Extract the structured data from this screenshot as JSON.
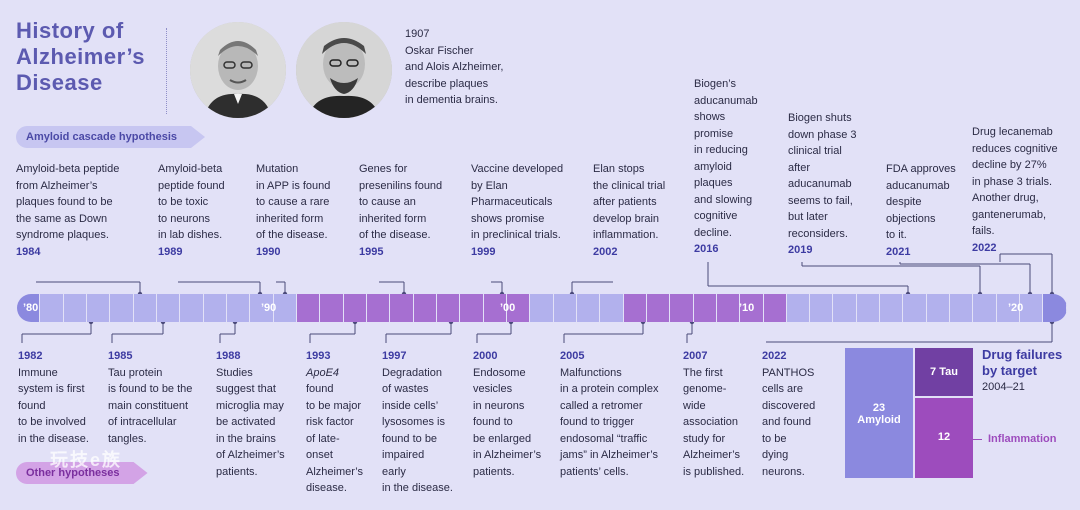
{
  "title": "History of Alzheimer’s Disease",
  "intro": {
    "year": "1907",
    "text": [
      "Oskar Fischer",
      "and Alois Alzheimer,",
      "describe plaques",
      " in dementia brains."
    ]
  },
  "labels": {
    "amyloid_hypothesis": "Amyloid cascade hypothesis",
    "other_hypotheses": "Other hypotheses"
  },
  "top_events": [
    {
      "year": "1984",
      "lines": [
        "Amyloid-beta peptide",
        "from Alzheimer’s",
        "plaques found to be",
        "the same as Down",
        "syndrome plaques."
      ]
    },
    {
      "year": "1989",
      "lines": [
        "Amyloid-beta",
        "peptide found",
        "to be toxic",
        "to neurons",
        "in lab dishes."
      ]
    },
    {
      "year": "1990",
      "lines": [
        "Mutation",
        "in APP is found",
        "to cause a rare",
        "inherited form",
        "of the disease."
      ]
    },
    {
      "year": "1995",
      "lines": [
        "Genes for",
        "presenilins found",
        "to cause an",
        "inherited form",
        "of the disease."
      ]
    },
    {
      "year": "1999",
      "lines": [
        "Vaccine developed",
        "by Elan",
        "Pharmaceuticals",
        "shows promise",
        "in preclinical trials."
      ]
    },
    {
      "year": "2002",
      "lines": [
        "Elan stops",
        "the clinical trial",
        "after patients",
        "develop brain",
        "inflammation."
      ]
    },
    {
      "year": "2016",
      "lines": [
        "Biogen’s",
        "aducanumab",
        "shows",
        "promise",
        "in reducing",
        "amyloid",
        "plaques",
        "and slowing",
        "cognitive",
        "decline."
      ]
    },
    {
      "year": "2019",
      "lines": [
        "Biogen shuts",
        "down phase 3",
        "clinical trial",
        "after",
        "aducanumab",
        "seems to fail,",
        "but later",
        "reconsiders."
      ]
    },
    {
      "year": "2021",
      "lines": [
        "FDA approves",
        "aducanumab",
        "despite",
        "objections",
        "to it."
      ]
    },
    {
      "year": "2022",
      "lines": [
        "Drug lecanemab",
        "reduces cognitive",
        "decline by 27%",
        "in phase 3 trials.",
        "Another drug,",
        "gantenerumab,",
        "fails."
      ]
    }
  ],
  "bottom_events": [
    {
      "year": "1982",
      "lines": [
        "Immune",
        "system is first",
        "found",
        "to be involved",
        "in the disease."
      ]
    },
    {
      "year": "1985",
      "lines": [
        "Tau protein",
        "is found to be the",
        "main constituent",
        "of intracellular",
        "tangles."
      ]
    },
    {
      "year": "1988",
      "lines": [
        "Studies",
        "suggest that",
        "microglia may",
        "be activated",
        "in the brains",
        "of Alzheimer’s",
        "patients."
      ]
    },
    {
      "year": "1993",
      "lines": [
        "ApoE4",
        "found",
        "to be major",
        "risk factor",
        "of late-",
        "onset",
        "Alzheimer’s",
        "disease."
      ]
    },
    {
      "year": "1997",
      "lines": [
        "Degradation",
        "of wastes",
        "inside cells’",
        "lysosomes is",
        "found to be",
        "impaired",
        "early",
        "in the disease."
      ]
    },
    {
      "year": "2000",
      "lines": [
        "Endosome",
        "vesicles",
        "in neurons",
        "found to",
        "be enlarged",
        "in Alzheimer’s",
        "patients."
      ]
    },
    {
      "year": "2005",
      "lines": [
        "Malfunctions",
        "in a protein complex",
        "called a retromer",
        "found to trigger",
        "endosomal “traffic",
        "jams” in Alzheimer’s",
        "patients’ cells."
      ]
    },
    {
      "year": "2007",
      "lines": [
        "The first",
        "genome-",
        "wide",
        "association",
        "study for",
        "Alzheimer’s",
        "is published."
      ]
    },
    {
      "year": "2022",
      "lines": [
        "PANTHOS",
        "cells are",
        "discovered",
        "and found",
        "to be",
        "dying",
        "neurons."
      ]
    }
  ],
  "timeline": {
    "decades": [
      "’80",
      "’90",
      "’00",
      "’10",
      "’20"
    ],
    "colors": {
      "amyloid": "#b2b1ed",
      "other": "#a66fd1",
      "caps": "#8b89df"
    }
  },
  "drug_failures": {
    "title": "Drug failures by target",
    "range": "2004–21",
    "amyloid": {
      "value": "23",
      "label": "Amyloid"
    },
    "tau": {
      "value": "7",
      "label": "Tau"
    },
    "inflammation": {
      "value": "12",
      "label": "Inflammation"
    }
  },
  "watermark": "玩技e族"
}
